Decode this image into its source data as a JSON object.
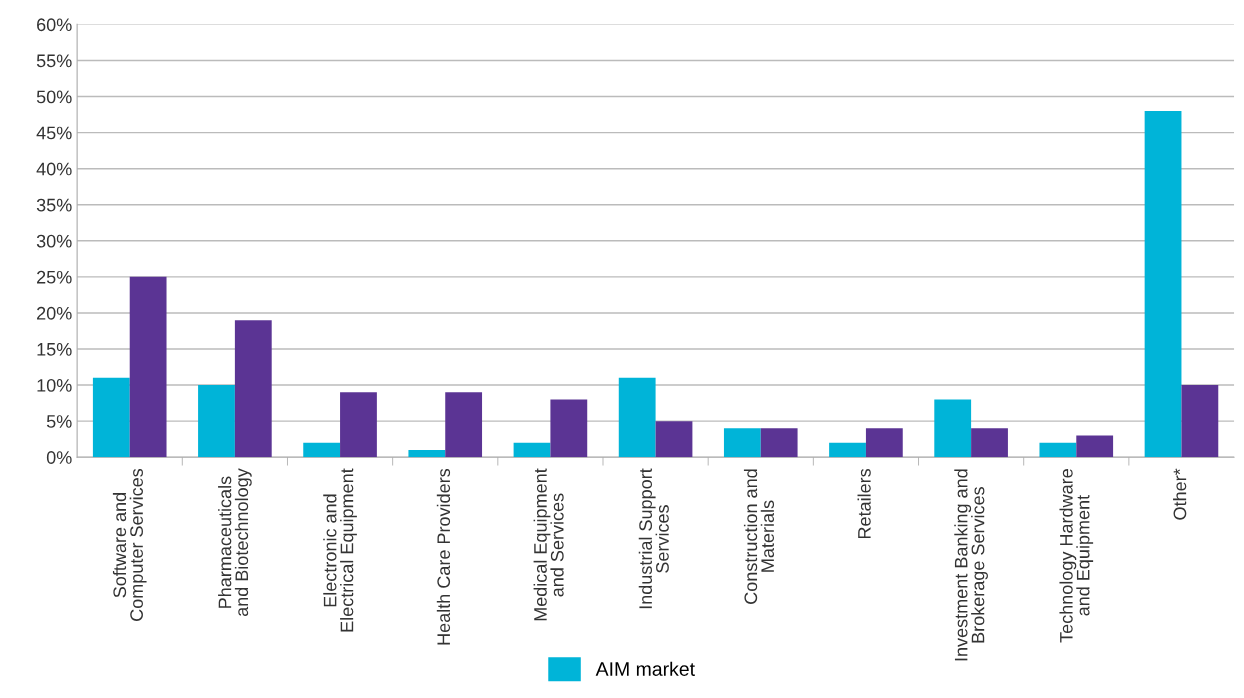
{
  "chart_data": {
    "type": "bar",
    "categories": [
      "Software and\nComputer Services",
      "Pharmaceuticals\nand Biotechnology",
      "Electronic and\nElectrical Equipment",
      "Health Care Providers",
      "Medical Equipment\nand Services",
      "Industrial Support\nServices",
      "Construction and\nMaterials",
      "Retailers",
      "Investment Banking and\nBrokerage Services",
      "Technology Hardware\nand Equipment",
      "Other*"
    ],
    "series": [
      {
        "name": "AIM market",
        "color": "#00b4d8",
        "values": [
          11,
          10,
          2,
          1,
          2,
          11,
          4,
          2,
          8,
          2,
          48
        ]
      },
      {
        "color": "#5b3494",
        "values": [
          25,
          19,
          9,
          9,
          8,
          5,
          4,
          4,
          4,
          3,
          10
        ]
      }
    ],
    "ylim": [
      0,
      60
    ],
    "yticks": [
      {
        "value": 0,
        "label": "0%"
      },
      {
        "value": 5,
        "label": "5%"
      },
      {
        "value": 10,
        "label": "10%"
      },
      {
        "value": 15,
        "label": "15%"
      },
      {
        "value": 20,
        "label": "20%"
      },
      {
        "value": 25,
        "label": "25%"
      },
      {
        "value": 30,
        "label": "30%"
      },
      {
        "value": 35,
        "label": "35%"
      },
      {
        "value": 40,
        "label": "40%"
      },
      {
        "value": 45,
        "label": "45%"
      },
      {
        "value": 50,
        "label": "50%"
      },
      {
        "value": 55,
        "label": "55%"
      },
      {
        "value": 60,
        "label": "60%"
      }
    ],
    "grid": "y",
    "legend": "bottom"
  }
}
